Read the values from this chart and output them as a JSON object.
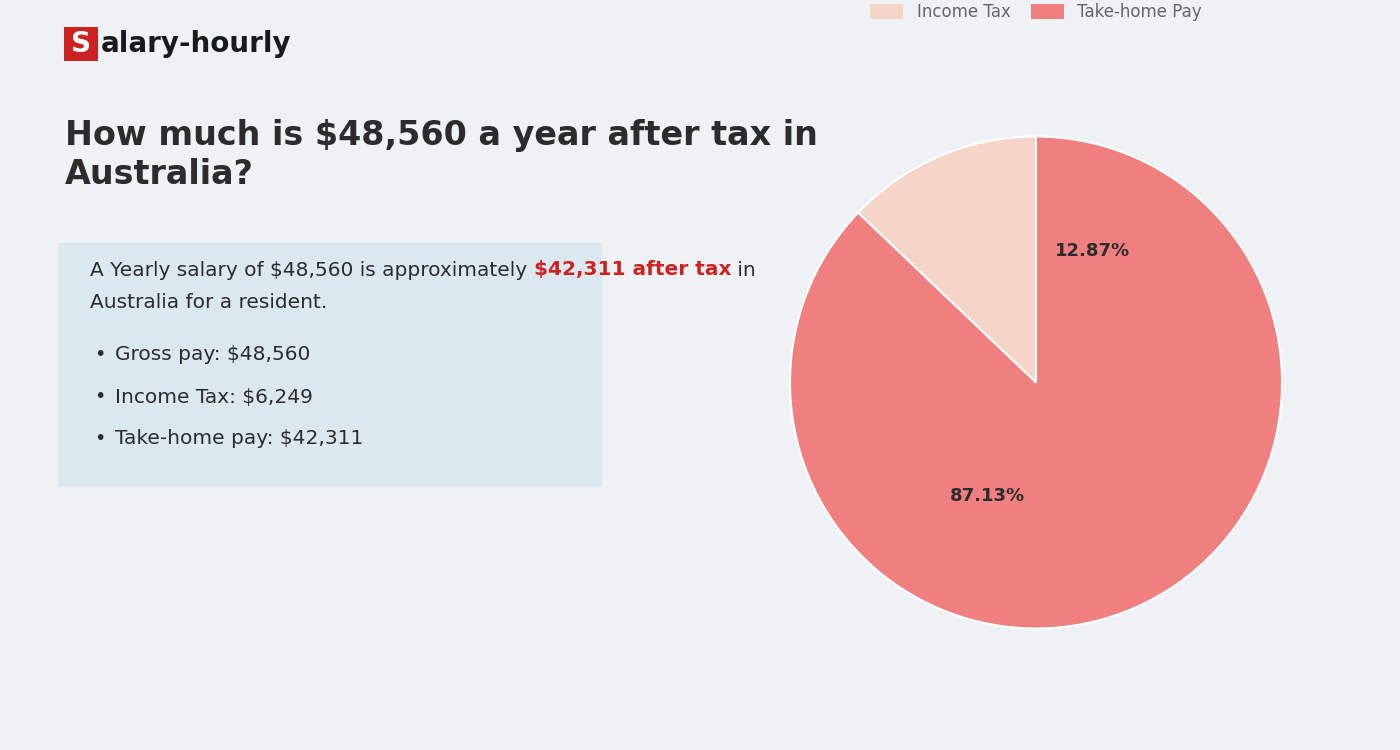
{
  "background_color": "#eef2f5",
  "logo_box_color": "#cc2222",
  "logo_s_color": "#ffffff",
  "logo_rest": "alary-hourly",
  "logo_rest_color": "#1a1a1a",
  "heading_line1": "How much is $48,560 a year after tax in",
  "heading_line2": "Australia?",
  "heading_color": "#2c2c2c",
  "info_box_color": "#dce8f0",
  "info_normal1": "A Yearly salary of $48,560 is approximately ",
  "info_highlight": "$42,311 after tax",
  "info_normal2": " in",
  "info_normal3": "Australia for a resident.",
  "info_highlight_color": "#cc2222",
  "text_color": "#2c2c2c",
  "bullet_items": [
    "Gross pay: $48,560",
    "Income Tax: $6,249",
    "Take-home pay: $42,311"
  ],
  "pie_values": [
    12.87,
    87.13
  ],
  "pie_labels": [
    "Income Tax",
    "Take-home Pay"
  ],
  "pie_colors": [
    "#f5d5c8",
    "#f08080"
  ],
  "pie_pct_labels": [
    "12.87%",
    "87.13%"
  ],
  "pie_text_color": "#2c2c2c",
  "legend_color": "#666666",
  "startangle": 90
}
